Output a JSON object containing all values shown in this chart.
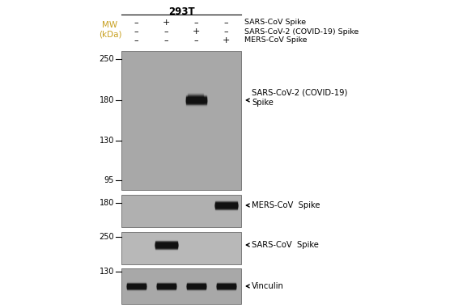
{
  "title": "293T",
  "bg_color": "#ffffff",
  "mw_label": "MW\n(kDa)",
  "mw_color": "#c8a020",
  "header_row1": [
    "–",
    "+",
    "–",
    "–"
  ],
  "header_row2": [
    "–",
    "–",
    "+",
    "–"
  ],
  "header_row3": [
    "–",
    "–",
    "–",
    "+"
  ],
  "side_label1": "SARS-CoV Spike",
  "side_label2": "SARS-CoV-2 (COVID-19) Spike",
  "side_label3": "MERS-CoV Spike",
  "arrow_label1": "SARS-CoV-2 (COVID-19)\nSpike",
  "arrow_label2": "MERS-CoV  Spike",
  "arrow_label3": "SARS-CoV  Spike",
  "arrow_label4": "Vinculin",
  "mw_p1": [
    250,
    180,
    130,
    95
  ],
  "mw_p2": [
    180
  ],
  "mw_p3": [
    250
  ],
  "mw_p4": [
    130
  ],
  "gel_color1": "#a8a8a8",
  "gel_color2": "#b0b0b0",
  "gel_color3": "#b8b8b8",
  "gel_color4": "#a8a8a8",
  "band_dark": "#111111",
  "band_mid": "#444444"
}
